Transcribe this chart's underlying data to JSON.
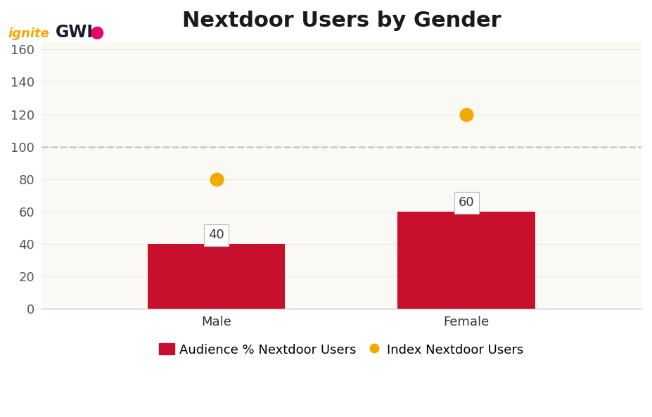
{
  "title": "Nextdoor Users by Gender",
  "categories": [
    "Male",
    "Female"
  ],
  "bar_values": [
    40,
    60
  ],
  "index_values": [
    80,
    120
  ],
  "bar_color": "#C8102E",
  "index_color": "#F5A800",
  "dashed_line_y": 100,
  "ylim": [
    0,
    165
  ],
  "yticks": [
    0,
    20,
    40,
    60,
    80,
    100,
    120,
    140,
    160
  ],
  "background_color": "#FFFFFF",
  "plot_bg_color": "#FAF9F4",
  "legend_bar_label": "Audience % Nextdoor Users",
  "legend_dot_label": "Index Nextdoor Users",
  "title_fontsize": 22,
  "tick_fontsize": 13,
  "legend_fontsize": 13,
  "bar_label_fontsize": 13,
  "bar_width": 0.55,
  "dot_size": 180,
  "gwi_text": "GWI",
  "gwi_dot_color": "#E8006A",
  "ignite_color": "#F5A800",
  "gwi_color": "#1A1A2E",
  "grid_color": "#E8E8E8",
  "dash_color": "#C8C8C8",
  "spine_color": "#CCCCCC"
}
